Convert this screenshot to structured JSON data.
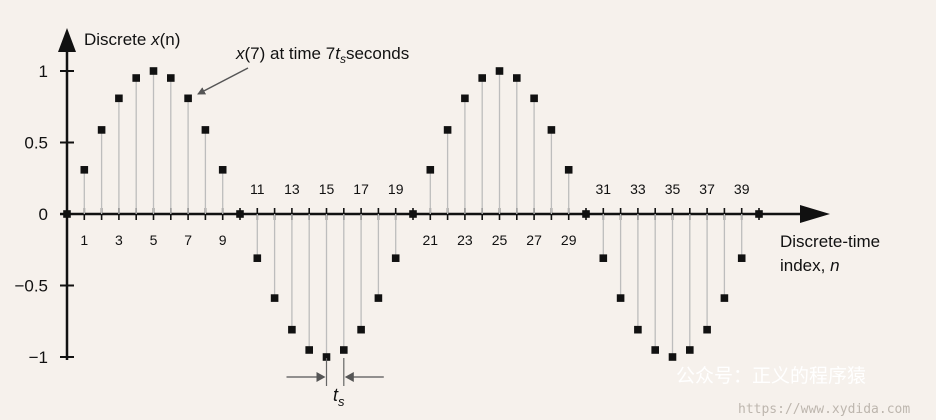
{
  "chart_data": {
    "type": "scatter",
    "style": "stem",
    "title": "",
    "ylabel_prefix": "Discrete ",
    "ylabel_var": "x",
    "ylabel_suffix": "(n)",
    "xlabel_line1": "Discrete-time",
    "xlabel_line2_prefix": "index, ",
    "xlabel_line2_var": "n",
    "xlim": [
      0,
      40
    ],
    "ylim": [
      -1,
      1
    ],
    "ytick_values": [
      1,
      0.5,
      0,
      -0.5,
      -1
    ],
    "ytick_labels": [
      "1",
      "0.5",
      "0",
      "−0.5",
      "−1"
    ],
    "xtick_labels_below": [
      1,
      3,
      5,
      7,
      9,
      21,
      23,
      25,
      27,
      29
    ],
    "xtick_labels_above": [
      11,
      13,
      15,
      17,
      19,
      31,
      33,
      35,
      37,
      39
    ],
    "samples_per_cycle": 20,
    "amplitude": 1,
    "x": [
      0,
      1,
      2,
      3,
      4,
      5,
      6,
      7,
      8,
      9,
      10,
      11,
      12,
      13,
      14,
      15,
      16,
      17,
      18,
      19,
      20,
      21,
      22,
      23,
      24,
      25,
      26,
      27,
      28,
      29,
      30,
      31,
      32,
      33,
      34,
      35,
      36,
      37,
      38,
      39,
      40
    ],
    "y": [
      0,
      0.309,
      0.588,
      0.809,
      0.951,
      1,
      0.951,
      0.809,
      0.588,
      0.309,
      0,
      -0.309,
      -0.588,
      -0.809,
      -0.951,
      -1,
      -0.951,
      -0.809,
      -0.588,
      -0.309,
      0,
      0.309,
      0.588,
      0.809,
      0.951,
      1,
      0.951,
      0.809,
      0.588,
      0.309,
      0,
      -0.309,
      -0.588,
      -0.809,
      -0.951,
      -1,
      -0.951,
      -0.809,
      -0.588,
      -0.309,
      0
    ],
    "annotation": {
      "var": "x",
      "text_mid": "(7) at time 7",
      "t": "t",
      "sub": "s",
      "text_end": "seconds",
      "points_to_n": 7
    },
    "interval": {
      "t": "t",
      "sub": "s",
      "between_n": [
        15,
        16
      ]
    },
    "grid": false,
    "legend": "none"
  },
  "watermark": {
    "line1": "公众号：正义的程序猿",
    "line2": "https://www.xydida.com"
  }
}
